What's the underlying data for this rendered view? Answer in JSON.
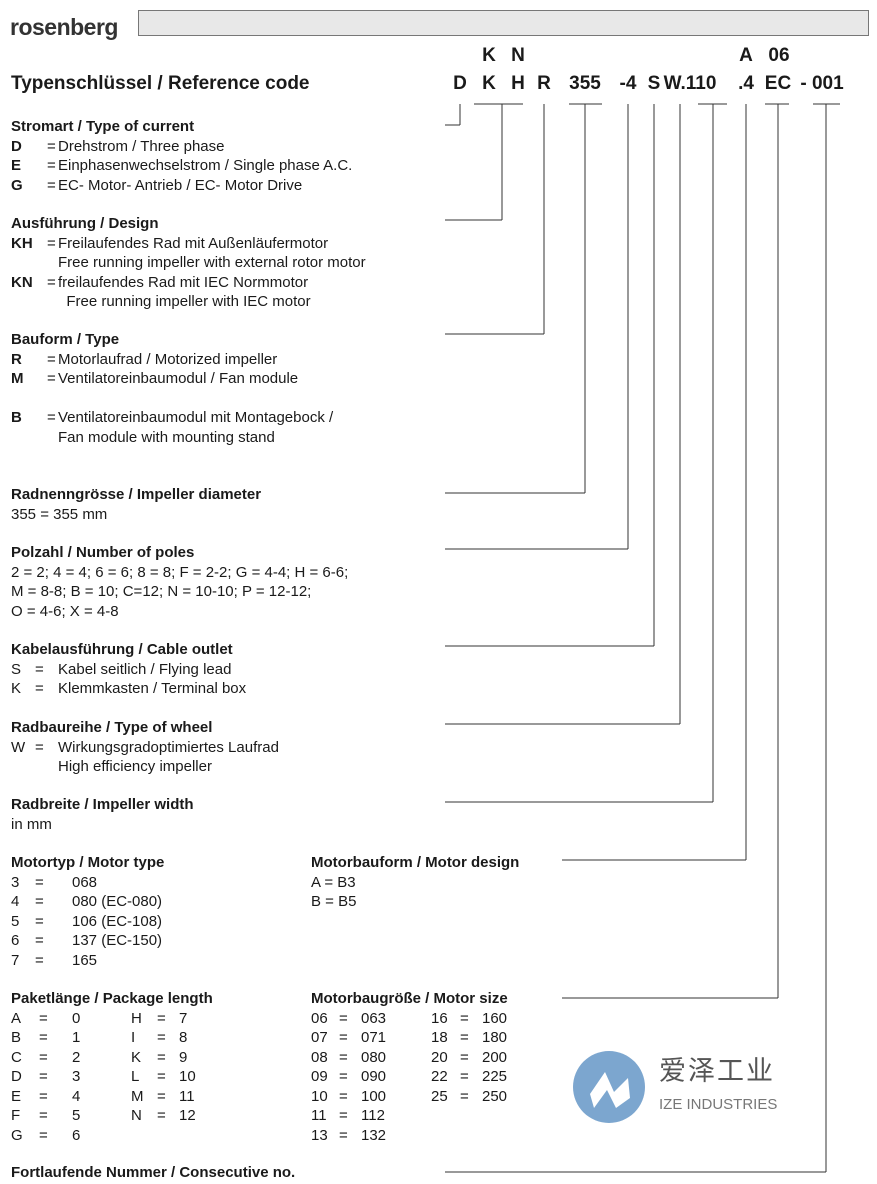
{
  "header": {
    "logo": "rosenberg",
    "title": "Typenschlüssel / Reference code"
  },
  "code": {
    "top": [
      "K",
      "N",
      "A",
      "06"
    ],
    "main": [
      "D",
      "K",
      "H",
      "R",
      "355",
      "-4",
      "S",
      "W.110",
      ".4",
      "EC",
      "- 001"
    ]
  },
  "watermark": {
    "cn": "爱泽工业",
    "en": "IZE INDUSTRIES",
    "color": "#6e9bc8"
  },
  "sections": [
    {
      "heading": "Stromart / Type of current",
      "rows": [
        [
          "D",
          "=",
          "Drehstrom / Three phase"
        ],
        [
          "E",
          "=",
          "Einphasenwechselstrom / Single phase A.C."
        ],
        [
          "G",
          "=",
          "EC- Motor- Antrieb / EC- Motor Drive"
        ]
      ]
    },
    {
      "heading": "Ausführung / Design",
      "rows": [
        [
          "KH",
          "=",
          "Freilaufendes Rad mit Außenläufermotor"
        ],
        [
          "",
          "",
          "Free running impeller with external rotor motor"
        ],
        [
          "KN",
          "=",
          "freilaufendes Rad mit IEC Normmotor"
        ],
        [
          "",
          "",
          "  Free running impeller with IEC motor"
        ]
      ]
    },
    {
      "heading": "Bauform / Type",
      "rows": [
        [
          "R",
          "=",
          "Motorlaufrad / Motorized impeller"
        ],
        [
          "M",
          "=",
          "Ventilatoreinbaumodul / Fan module"
        ],
        [
          "",
          "",
          ""
        ],
        [
          "B",
          "=",
          "Ventilatoreinbaumodul mit Montagebock /"
        ],
        [
          "",
          "",
          "Fan module with mounting stand"
        ]
      ]
    },
    {
      "heading": "Radnenngrösse / Impeller diameter",
      "rows": [
        [
          "355 = 355 mm"
        ]
      ]
    },
    {
      "heading": "Polzahl / Number of poles",
      "rows": [
        [
          "2 = 2; 4 = 4; 6 = 6; 8 = 8; F = 2-2; G = 4-4; H = 6-6;"
        ],
        [
          "M = 8-8; B = 10; C=12; N = 10-10; P = 12-12;"
        ],
        [
          "O = 4-6; X = 4-8"
        ]
      ]
    },
    {
      "heading": "Kabelausführung / Cable outlet",
      "rows": [
        [
          "S",
          "=",
          "Kabel seitlich / Flying lead"
        ],
        [
          "K",
          "=",
          "Klemmkasten / Terminal box"
        ]
      ]
    },
    {
      "heading": "Radbaureihe / Type of wheel",
      "rows": [
        [
          "W",
          "=",
          "Wirkungsgradoptimiertes Laufrad"
        ],
        [
          "",
          "",
          "High efficiency impeller"
        ]
      ]
    },
    {
      "heading": "Radbreite / Impeller width",
      "rows": [
        [
          "in mm"
        ]
      ]
    },
    {
      "heading": "Motortyp / Motor type",
      "rows": [
        [
          "3",
          "=",
          "068"
        ],
        [
          "4",
          "=",
          "080 (EC-080)"
        ],
        [
          "5",
          "=",
          "106 (EC-108)"
        ],
        [
          "6",
          "=",
          "137 (EC-150)"
        ],
        [
          "7",
          "=",
          "165"
        ]
      ]
    },
    {
      "heading": "Motorbauform / Motor design",
      "rows": [
        [
          "A = B3"
        ],
        [
          "B = B5"
        ]
      ]
    },
    {
      "heading": "Paketlänge / Package length",
      "rows": [
        [
          "A",
          "=",
          "0",
          "H",
          "=",
          "7"
        ],
        [
          "B",
          "=",
          "1",
          "I",
          "=",
          "8"
        ],
        [
          "C",
          "=",
          "2",
          "K",
          "=",
          "9"
        ],
        [
          "D",
          "=",
          "3",
          "L",
          "=",
          "10"
        ],
        [
          "E",
          "=",
          "4",
          "M",
          "=",
          "11"
        ],
        [
          "F",
          "=",
          "5",
          "N",
          "=",
          "12"
        ],
        [
          "G",
          "=",
          "6",
          "",
          "",
          ""
        ]
      ]
    },
    {
      "heading": "Motorbaugröße / Motor size",
      "rows": [
        [
          "06",
          "=",
          "063",
          "16",
          "=",
          "160"
        ],
        [
          "07",
          "=",
          "071",
          "18",
          "=",
          "180"
        ],
        [
          "08",
          "=",
          "080",
          "20",
          "=",
          "200"
        ],
        [
          "09",
          "=",
          "090",
          "22",
          "=",
          "225"
        ],
        [
          "10",
          "=",
          "100",
          "25",
          "=",
          "250"
        ],
        [
          "11",
          "=",
          "112",
          "",
          "",
          ""
        ],
        [
          "13",
          "=",
          "132",
          "",
          "",
          ""
        ]
      ]
    },
    {
      "heading": "Fortlaufende Nummer / Consecutive no.",
      "rows": []
    }
  ]
}
